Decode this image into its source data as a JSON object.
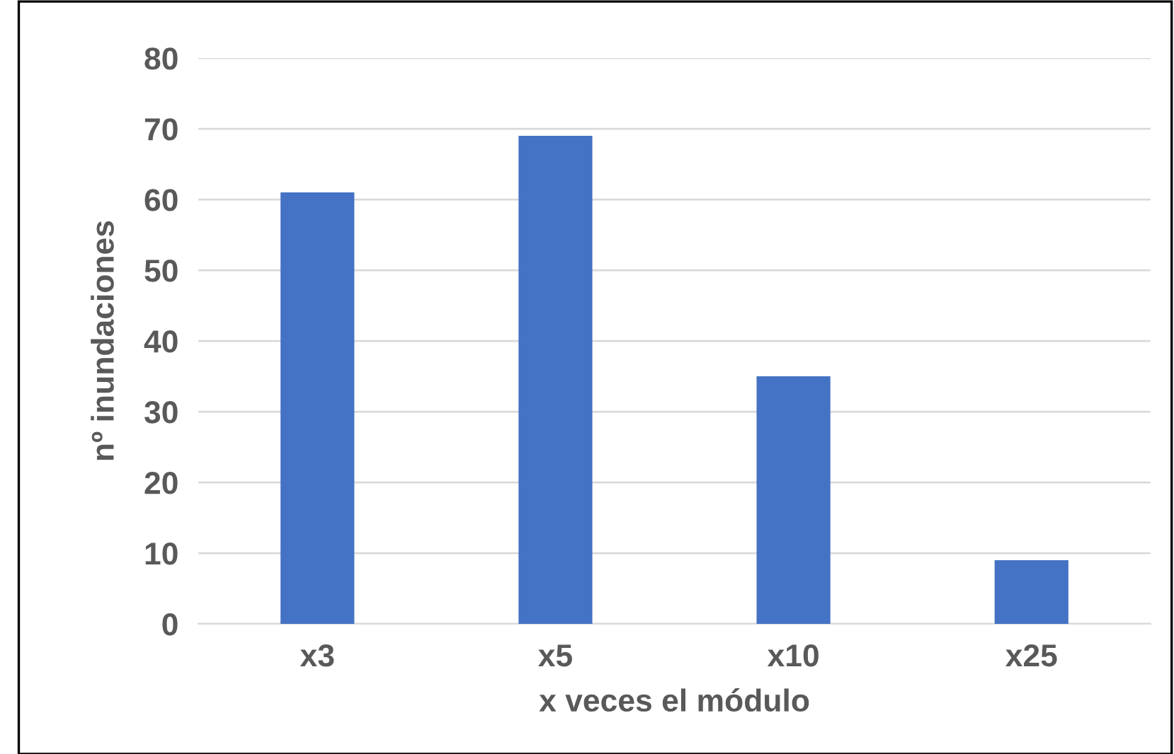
{
  "chart_data": {
    "type": "bar",
    "xlabel": "x veces el módulo",
    "ylabel": "nº inundaciones",
    "categories": [
      "x3",
      "x5",
      "x10",
      "x25"
    ],
    "values": [
      61,
      69,
      35,
      9
    ],
    "color": "#4472c4",
    "ylim": [
      0,
      80
    ],
    "yticks": [
      0,
      10,
      20,
      30,
      40,
      50,
      60,
      70,
      80
    ],
    "grid": "y"
  }
}
